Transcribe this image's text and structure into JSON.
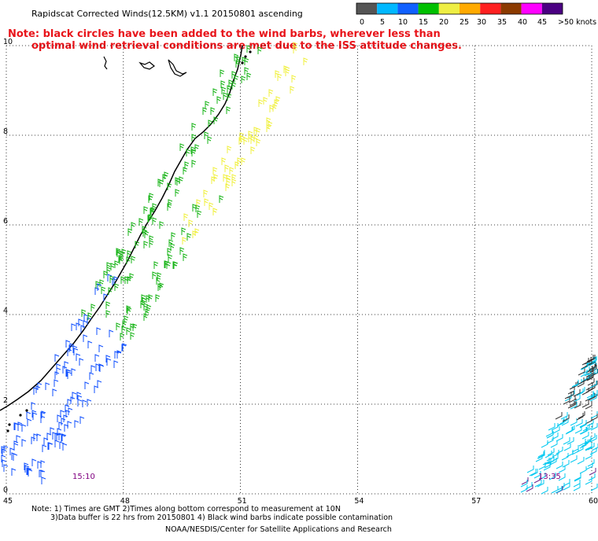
{
  "title": "Rapidscat Corrected Winds(12.5KM) v1.1 20150801 ascending",
  "note_line1": "Note: black circles have been added to the wind barbs, wherever less than",
  "note_line2": "optimal wind retrieval conditions are met due to the ISS attitude changes.",
  "legend": {
    "colors": [
      "#555555",
      "#00b8ff",
      "#1060ff",
      "#00c000",
      "#eeee44",
      "#ffaa00",
      "#ff2020",
      "#8b3a00",
      "#ff00ff",
      "#4b0082"
    ],
    "labels": [
      "0",
      "5",
      "10",
      "15",
      "20",
      "25",
      "30",
      "35",
      "40",
      "45",
      ">50 knots"
    ]
  },
  "map": {
    "lon_ticks": [
      "45",
      "48",
      "51",
      "54",
      "57",
      "60"
    ],
    "lat_ticks": [
      "0",
      "2",
      "4",
      "6",
      "8",
      "10"
    ],
    "time_labels": [
      "15:10",
      "13:35"
    ],
    "grid": true,
    "lon_range": [
      45,
      60
    ],
    "lat_range": [
      0,
      10
    ]
  },
  "footer": {
    "line1": "Note: 1) Times are GMT 2)Times along bottom correspond to measurement at 10N",
    "line2": "3)Data buffer is 22 hrs from 20150801 4) Black wind barbs indicate possible contamination",
    "line3": "NOAA/NESDIS/Center for Satellite Applications and Research"
  }
}
